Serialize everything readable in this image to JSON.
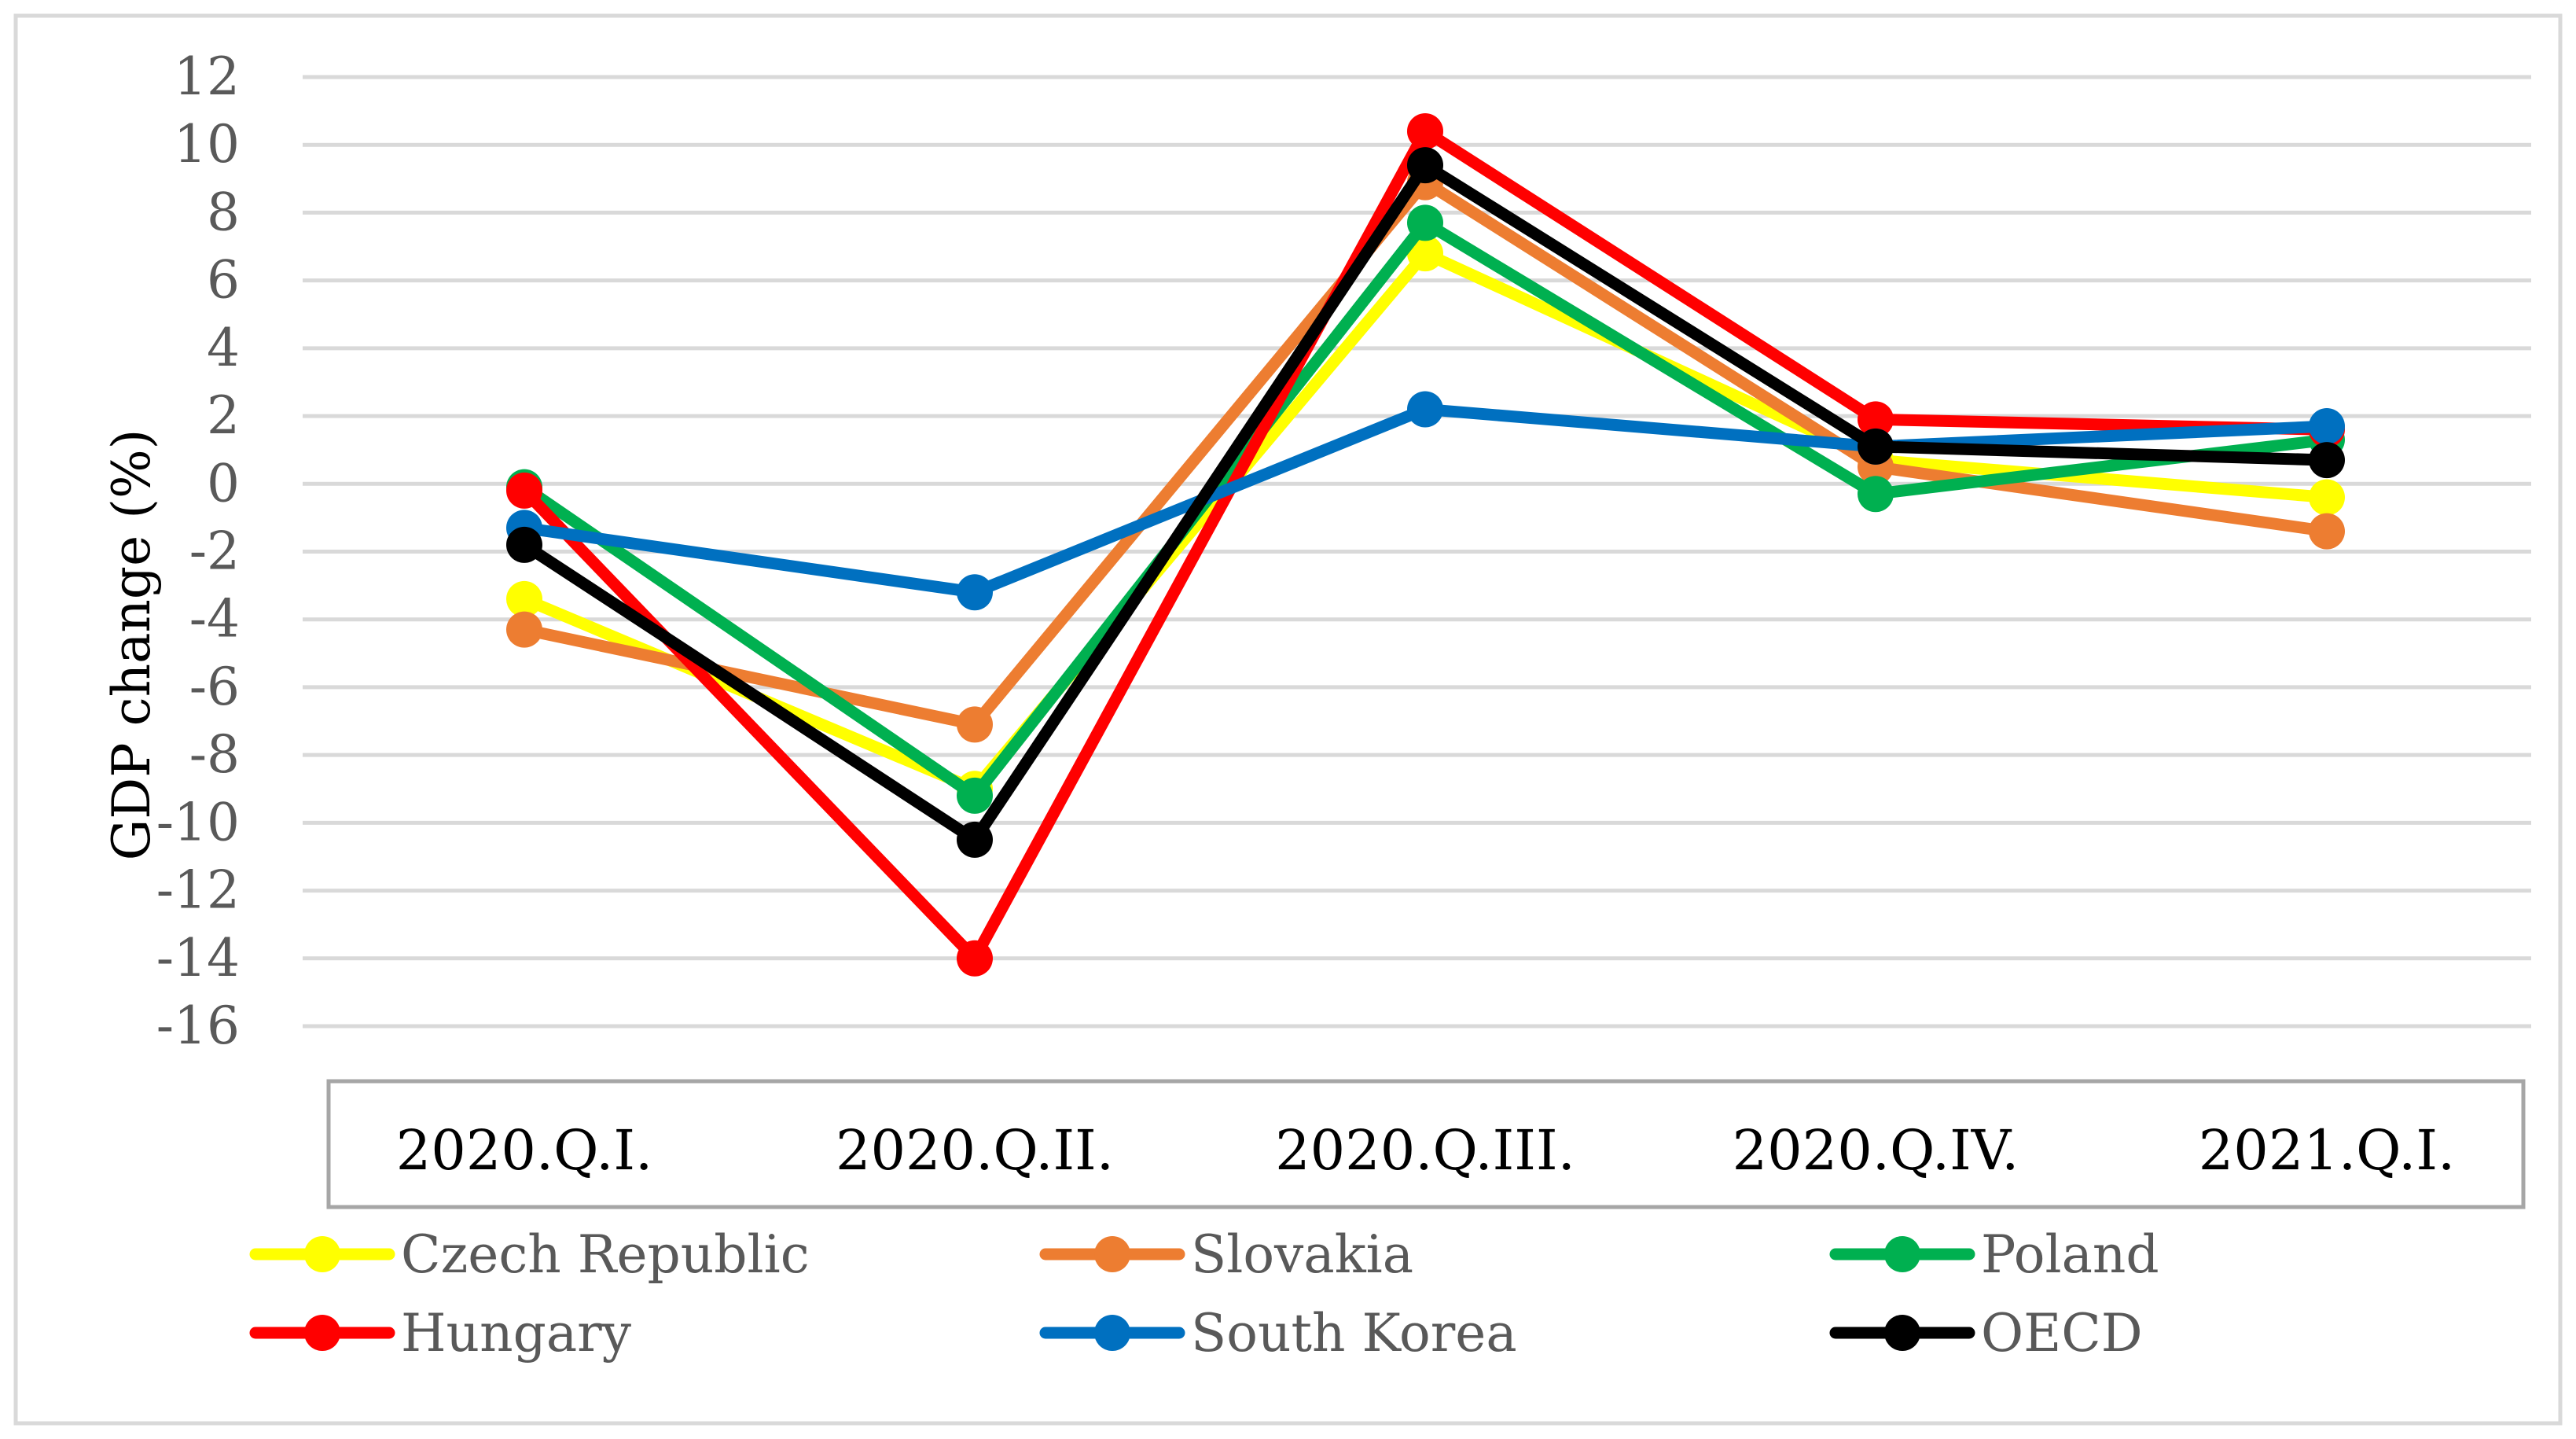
{
  "chart_data": {
    "type": "line",
    "title": "",
    "xlabel": "",
    "ylabel": "GDP change (%)",
    "ylim": [
      -16,
      12
    ],
    "ytick_step": 2,
    "ytick_labels": [
      "12",
      "10",
      "8",
      "6",
      "4",
      "2",
      "0",
      "-2",
      "-4",
      "-6",
      "-8",
      "-10",
      "-12",
      "-14",
      "-16"
    ],
    "grid": true,
    "legend_position": "bottom",
    "categories": [
      "2020.Q.I.",
      "2020.Q.II.",
      "2020.Q.III.",
      "2020.Q.IV.",
      "2021.Q.I."
    ],
    "series": [
      {
        "name": "Czech Republic",
        "color": "#ffff00",
        "values": [
          -3.4,
          -9.0,
          6.8,
          0.7,
          -0.4
        ]
      },
      {
        "name": "Slovakia",
        "color": "#ed7d31",
        "values": [
          -4.3,
          -7.1,
          8.9,
          0.5,
          -1.4
        ]
      },
      {
        "name": "Poland",
        "color": "#00b050",
        "values": [
          -0.1,
          -9.2,
          7.7,
          -0.3,
          1.3
        ]
      },
      {
        "name": "Hungary",
        "color": "#ff0000",
        "values": [
          -0.2,
          -14.0,
          10.4,
          1.9,
          1.6
        ]
      },
      {
        "name": "South Korea",
        "color": "#0070c0",
        "values": [
          -1.3,
          -3.2,
          2.2,
          1.1,
          1.7
        ]
      },
      {
        "name": "OECD",
        "color": "#000000",
        "values": [
          -1.8,
          -10.5,
          9.4,
          1.1,
          0.7
        ]
      }
    ]
  }
}
